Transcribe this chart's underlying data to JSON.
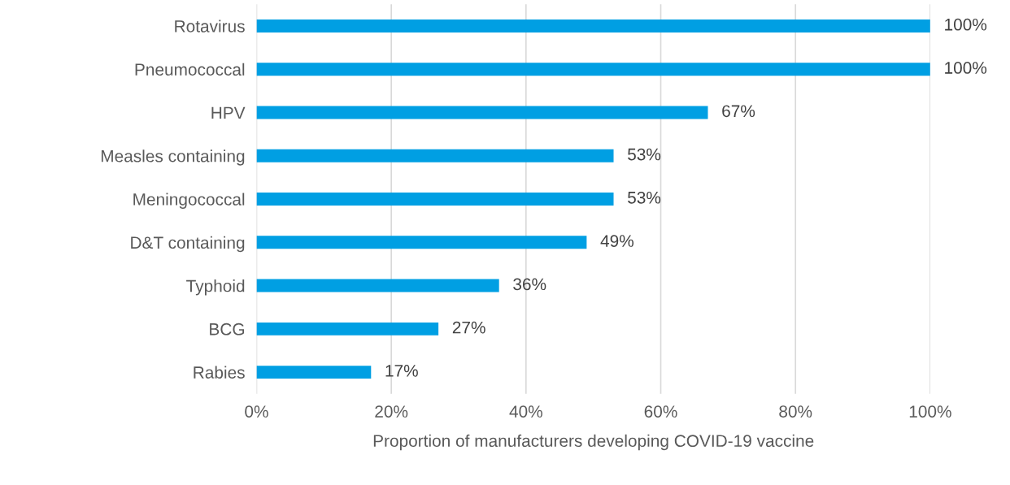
{
  "chart_data": {
    "type": "bar",
    "orientation": "horizontal",
    "xlabel": "Proportion of manufacturers developing COVID-19 vaccine",
    "categories": [
      "Rotavirus",
      "Pneumococcal",
      "HPV",
      "Measles containing",
      "Meningococcal",
      "D&T containing",
      "Typhoid",
      "BCG",
      "Rabies"
    ],
    "values": [
      100,
      100,
      67,
      53,
      53,
      49,
      36,
      27,
      17
    ],
    "value_labels": [
      "100%",
      "100%",
      "67%",
      "53%",
      "53%",
      "49%",
      "36%",
      "27%",
      "17%"
    ],
    "color": "#009fe3",
    "xlim": [
      0,
      100
    ],
    "xticks": [
      {
        "value": 0,
        "label": "0%"
      },
      {
        "value": 20,
        "label": "20%"
      },
      {
        "value": 40,
        "label": "40%"
      },
      {
        "value": 60,
        "label": "60%"
      },
      {
        "value": 80,
        "label": "80%"
      },
      {
        "value": 100,
        "label": "100%"
      }
    ],
    "grid": "x",
    "legend": false
  }
}
